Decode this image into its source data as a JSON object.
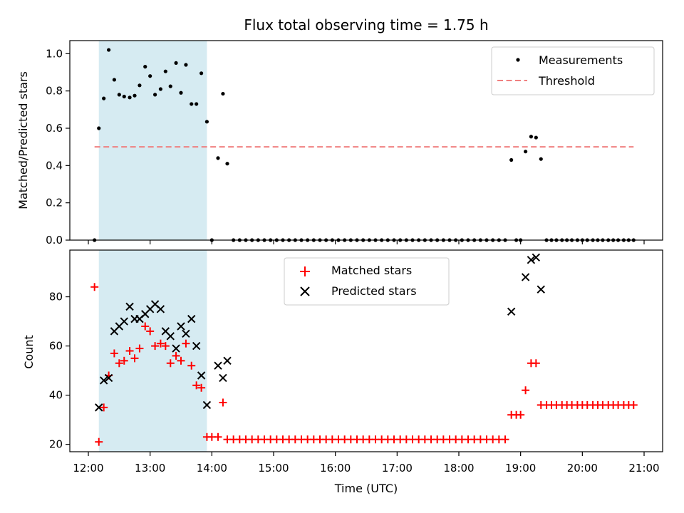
{
  "title": "Flux total observing time = 1.75 h",
  "x_ticks": [
    "12:00",
    "13:00",
    "14:00",
    "15:00",
    "16:00",
    "17:00",
    "18:00",
    "19:00",
    "20:00",
    "21:00"
  ],
  "chart_data": [
    {
      "type": "scatter",
      "ylabel": "Matched/Predicted stars",
      "xlim": [
        11.7,
        21.3
      ],
      "ylim": [
        0,
        1.07
      ],
      "y_ticks": [
        0.0,
        0.2,
        0.4,
        0.6,
        0.8,
        1.0
      ],
      "y_tick_labels": [
        "0.0",
        "0.2",
        "0.4",
        "0.6",
        "0.8",
        "1.0"
      ],
      "shaded_span": [
        12.17,
        13.92
      ],
      "legend": {
        "placement": "upper right",
        "entries": [
          "Measurements",
          "Threshold"
        ]
      },
      "threshold": {
        "name": "Threshold",
        "value": 0.5,
        "x_range": [
          12.1,
          20.83
        ],
        "color": "#f08080"
      },
      "series": [
        {
          "name": "Measurements",
          "color": "#000000",
          "points": [
            [
              12.1,
              0.0
            ],
            [
              12.17,
              0.6
            ],
            [
              12.25,
              0.76
            ],
            [
              12.33,
              1.02
            ],
            [
              12.42,
              0.86
            ],
            [
              12.5,
              0.78
            ],
            [
              12.58,
              0.77
            ],
            [
              12.67,
              0.765
            ],
            [
              12.75,
              0.775
            ],
            [
              12.83,
              0.83
            ],
            [
              12.92,
              0.93
            ],
            [
              13.0,
              0.88
            ],
            [
              13.08,
              0.78
            ],
            [
              13.17,
              0.81
            ],
            [
              13.25,
              0.905
            ],
            [
              13.33,
              0.825
            ],
            [
              13.42,
              0.95
            ],
            [
              13.5,
              0.79
            ],
            [
              13.58,
              0.94
            ],
            [
              13.67,
              0.73
            ],
            [
              13.75,
              0.73
            ],
            [
              13.83,
              0.895
            ],
            [
              13.92,
              0.635
            ],
            [
              14.0,
              0.0
            ],
            [
              14.1,
              0.44
            ],
            [
              14.18,
              0.785
            ],
            [
              14.25,
              0.41
            ],
            [
              14.35,
              0.0
            ],
            [
              14.45,
              0.0
            ],
            [
              14.55,
              0.0
            ],
            [
              14.65,
              0.0
            ],
            [
              14.75,
              0.0
            ],
            [
              14.85,
              0.0
            ],
            [
              14.95,
              0.0
            ],
            [
              15.05,
              0.0
            ],
            [
              15.15,
              0.0
            ],
            [
              15.25,
              0.0
            ],
            [
              15.35,
              0.0
            ],
            [
              15.45,
              0.0
            ],
            [
              15.55,
              0.0
            ],
            [
              15.65,
              0.0
            ],
            [
              15.75,
              0.0
            ],
            [
              15.85,
              0.0
            ],
            [
              15.95,
              0.0
            ],
            [
              16.05,
              0.0
            ],
            [
              16.15,
              0.0
            ],
            [
              16.25,
              0.0
            ],
            [
              16.35,
              0.0
            ],
            [
              16.45,
              0.0
            ],
            [
              16.55,
              0.0
            ],
            [
              16.65,
              0.0
            ],
            [
              16.75,
              0.0
            ],
            [
              16.85,
              0.0
            ],
            [
              16.95,
              0.0
            ],
            [
              17.05,
              0.0
            ],
            [
              17.15,
              0.0
            ],
            [
              17.25,
              0.0
            ],
            [
              17.35,
              0.0
            ],
            [
              17.45,
              0.0
            ],
            [
              17.55,
              0.0
            ],
            [
              17.65,
              0.0
            ],
            [
              17.75,
              0.0
            ],
            [
              17.85,
              0.0
            ],
            [
              17.95,
              0.0
            ],
            [
              18.05,
              0.0
            ],
            [
              18.15,
              0.0
            ],
            [
              18.25,
              0.0
            ],
            [
              18.35,
              0.0
            ],
            [
              18.45,
              0.0
            ],
            [
              18.55,
              0.0
            ],
            [
              18.65,
              0.0
            ],
            [
              18.75,
              0.0
            ],
            [
              18.85,
              0.43
            ],
            [
              18.93,
              0.0
            ],
            [
              19.0,
              0.0
            ],
            [
              19.08,
              0.475
            ],
            [
              19.17,
              0.555
            ],
            [
              19.25,
              0.55
            ],
            [
              19.33,
              0.435
            ],
            [
              19.42,
              0.0
            ],
            [
              19.5,
              0.0
            ],
            [
              19.58,
              0.0
            ],
            [
              19.67,
              0.0
            ],
            [
              19.75,
              0.0
            ],
            [
              19.83,
              0.0
            ],
            [
              19.92,
              0.0
            ],
            [
              20.0,
              0.0
            ],
            [
              20.08,
              0.0
            ],
            [
              20.17,
              0.0
            ],
            [
              20.25,
              0.0
            ],
            [
              20.33,
              0.0
            ],
            [
              20.42,
              0.0
            ],
            [
              20.5,
              0.0
            ],
            [
              20.58,
              0.0
            ],
            [
              20.67,
              0.0
            ],
            [
              20.75,
              0.0
            ],
            [
              20.83,
              0.0
            ]
          ]
        }
      ]
    },
    {
      "type": "scatter",
      "xlabel": "Time (UTC)",
      "ylabel": "Count",
      "xlim": [
        11.7,
        21.3
      ],
      "ylim": [
        17,
        99
      ],
      "y_ticks": [
        20,
        40,
        60,
        80
      ],
      "y_tick_labels": [
        "20",
        "40",
        "60",
        "80"
      ],
      "shaded_span": [
        12.17,
        13.92
      ],
      "legend": {
        "placement": "upper center",
        "entries": [
          "Matched stars",
          "Predicted stars"
        ]
      },
      "series": [
        {
          "name": "Matched stars",
          "marker": "plus",
          "color": "#ff0000",
          "points": [
            [
              12.1,
              84
            ],
            [
              12.17,
              21
            ],
            [
              12.25,
              35
            ],
            [
              12.33,
              48
            ],
            [
              12.42,
              57
            ],
            [
              12.5,
              53
            ],
            [
              12.58,
              54
            ],
            [
              12.67,
              58
            ],
            [
              12.75,
              55
            ],
            [
              12.83,
              59
            ],
            [
              12.92,
              68
            ],
            [
              13.0,
              66
            ],
            [
              13.08,
              60
            ],
            [
              13.17,
              61
            ],
            [
              13.25,
              60
            ],
            [
              13.33,
              53
            ],
            [
              13.42,
              56
            ],
            [
              13.5,
              54
            ],
            [
              13.58,
              61
            ],
            [
              13.67,
              52
            ],
            [
              13.75,
              44
            ],
            [
              13.83,
              43
            ],
            [
              13.92,
              23
            ],
            [
              14.0,
              23
            ],
            [
              14.1,
              23
            ],
            [
              14.18,
              37
            ],
            [
              14.25,
              22
            ],
            [
              14.35,
              22
            ],
            [
              14.45,
              22
            ],
            [
              14.55,
              22
            ],
            [
              14.65,
              22
            ],
            [
              14.75,
              22
            ],
            [
              14.85,
              22
            ],
            [
              14.95,
              22
            ],
            [
              15.05,
              22
            ],
            [
              15.15,
              22
            ],
            [
              15.25,
              22
            ],
            [
              15.35,
              22
            ],
            [
              15.45,
              22
            ],
            [
              15.55,
              22
            ],
            [
              15.65,
              22
            ],
            [
              15.75,
              22
            ],
            [
              15.85,
              22
            ],
            [
              15.95,
              22
            ],
            [
              16.05,
              22
            ],
            [
              16.15,
              22
            ],
            [
              16.25,
              22
            ],
            [
              16.35,
              22
            ],
            [
              16.45,
              22
            ],
            [
              16.55,
              22
            ],
            [
              16.65,
              22
            ],
            [
              16.75,
              22
            ],
            [
              16.85,
              22
            ],
            [
              16.95,
              22
            ],
            [
              17.05,
              22
            ],
            [
              17.15,
              22
            ],
            [
              17.25,
              22
            ],
            [
              17.35,
              22
            ],
            [
              17.45,
              22
            ],
            [
              17.55,
              22
            ],
            [
              17.65,
              22
            ],
            [
              17.75,
              22
            ],
            [
              17.85,
              22
            ],
            [
              17.95,
              22
            ],
            [
              18.05,
              22
            ],
            [
              18.15,
              22
            ],
            [
              18.25,
              22
            ],
            [
              18.35,
              22
            ],
            [
              18.45,
              22
            ],
            [
              18.55,
              22
            ],
            [
              18.65,
              22
            ],
            [
              18.75,
              22
            ],
            [
              18.85,
              32
            ],
            [
              18.93,
              32
            ],
            [
              19.0,
              32
            ],
            [
              19.08,
              42
            ],
            [
              19.17,
              53
            ],
            [
              19.25,
              53
            ],
            [
              19.33,
              36
            ],
            [
              19.42,
              36
            ],
            [
              19.5,
              36
            ],
            [
              19.58,
              36
            ],
            [
              19.67,
              36
            ],
            [
              19.75,
              36
            ],
            [
              19.83,
              36
            ],
            [
              19.92,
              36
            ],
            [
              20.0,
              36
            ],
            [
              20.08,
              36
            ],
            [
              20.17,
              36
            ],
            [
              20.25,
              36
            ],
            [
              20.33,
              36
            ],
            [
              20.42,
              36
            ],
            [
              20.5,
              36
            ],
            [
              20.58,
              36
            ],
            [
              20.67,
              36
            ],
            [
              20.75,
              36
            ],
            [
              20.83,
              36
            ]
          ]
        },
        {
          "name": "Predicted stars",
          "marker": "x",
          "color": "#000000",
          "points": [
            [
              12.17,
              35
            ],
            [
              12.25,
              46
            ],
            [
              12.33,
              47
            ],
            [
              12.42,
              66
            ],
            [
              12.5,
              68
            ],
            [
              12.58,
              70
            ],
            [
              12.67,
              76
            ],
            [
              12.75,
              71
            ],
            [
              12.83,
              71
            ],
            [
              12.92,
              73
            ],
            [
              13.0,
              75
            ],
            [
              13.08,
              77
            ],
            [
              13.17,
              75
            ],
            [
              13.25,
              66
            ],
            [
              13.33,
              64
            ],
            [
              13.42,
              59
            ],
            [
              13.5,
              68
            ],
            [
              13.58,
              65
            ],
            [
              13.67,
              71
            ],
            [
              13.75,
              60
            ],
            [
              13.83,
              48
            ],
            [
              13.92,
              36
            ],
            [
              14.1,
              52
            ],
            [
              14.18,
              47
            ],
            [
              14.25,
              54
            ],
            [
              18.85,
              74
            ],
            [
              19.08,
              88
            ],
            [
              19.17,
              95
            ],
            [
              19.25,
              96
            ],
            [
              19.33,
              83
            ]
          ]
        }
      ]
    }
  ]
}
